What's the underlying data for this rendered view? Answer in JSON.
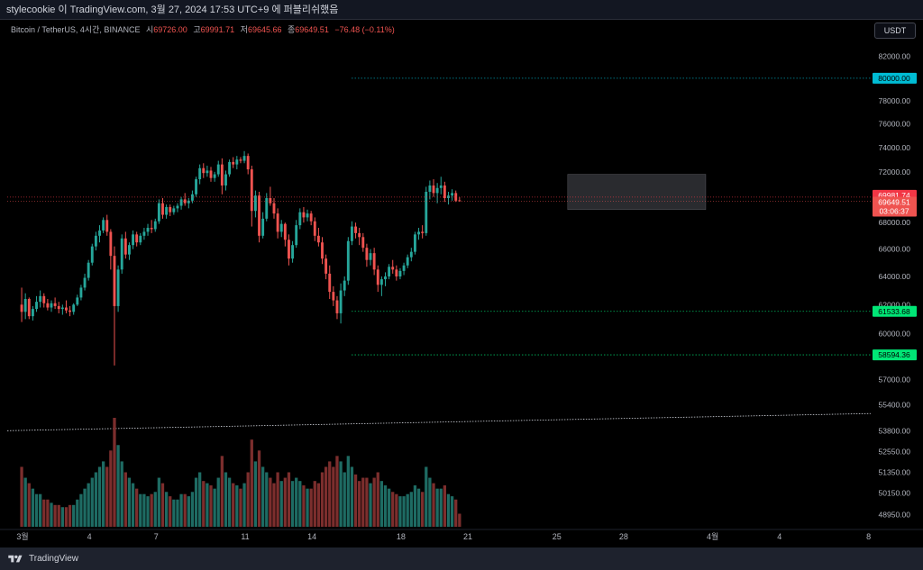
{
  "header": {
    "publish_line": "stylecookie 이 TradingView.com, 3월 27, 2024 17:53 UTC+9 에 퍼블리쉬했음"
  },
  "legend": {
    "symbol": "Bitcoin / TetherUS, 4시간, BINANCE",
    "open_label": "시",
    "open": "69726.00",
    "high_label": "고",
    "high": "69991.71",
    "low_label": "저",
    "low": "69645.66",
    "close_label": "종",
    "close": "69649.51",
    "change": "−76.48 (−0.11%)"
  },
  "currency_button": "USDT",
  "footer": {
    "brand": "TradingView"
  },
  "colors": {
    "up": "#26a69a",
    "down": "#ef5350",
    "vol_up": "#1e6b63",
    "vol_down": "#7c2e2d",
    "price_badge": "#f23645",
    "last_badge": "#ef5350",
    "level_cyan": "#00bcd4",
    "level_green": "#00e676"
  },
  "chart_data": {
    "type": "candlestick",
    "symbol": "BTCUSDT",
    "interval": "4h",
    "x_ticks": [
      "3월",
      "4",
      "7",
      "11",
      "14",
      "18",
      "21",
      "25",
      "28",
      "4월",
      "4",
      "8"
    ],
    "y_ticks": [
      "82000.00",
      "78000.00",
      "76000.00",
      "74000.00",
      "72000.00",
      "68000.00",
      "66000.00",
      "64000.00",
      "62000.00",
      "60000.00",
      "57000.00",
      "55400.00",
      "53800.00",
      "52550.00",
      "51350.00",
      "50150.00",
      "48950.00"
    ],
    "y_scale": "log",
    "last_price": {
      "value": "69649.51",
      "countdown": "03:06:37"
    },
    "high_line": "69981.74",
    "levels": [
      {
        "value": "80000.00",
        "color": "cyan"
      },
      {
        "value": "61533.68",
        "color": "green"
      },
      {
        "value": "58594.36",
        "color": "green"
      }
    ],
    "trend_line": {
      "from_date": "2024-03-01",
      "from_price": 53800,
      "to_date": "2024-04-08",
      "to_price": 54850
    },
    "range_box": {
      "from_date": "2024-03-25",
      "to_date": "2024-03-31",
      "low": 69000,
      "high": 71800
    },
    "start_date": "2024-03-01",
    "candle_hours": 4,
    "candles": [
      [
        62000,
        63200,
        60800,
        61500,
        0.55
      ],
      [
        61500,
        62800,
        61000,
        62400,
        0.45
      ],
      [
        62400,
        62500,
        61000,
        61200,
        0.4
      ],
      [
        61200,
        61900,
        60900,
        61700,
        0.35
      ],
      [
        61700,
        62600,
        61500,
        62200,
        0.3
      ],
      [
        62200,
        63000,
        61800,
        62600,
        0.3
      ],
      [
        62600,
        62800,
        61800,
        62100,
        0.25
      ],
      [
        62100,
        62400,
        61600,
        61800,
        0.25
      ],
      [
        61800,
        62300,
        61500,
        62100,
        0.22
      ],
      [
        62100,
        62500,
        61700,
        61900,
        0.2
      ],
      [
        61900,
        62200,
        61400,
        61700,
        0.2
      ],
      [
        61700,
        62000,
        61300,
        61800,
        0.18
      ],
      [
        61800,
        62300,
        61400,
        61600,
        0.18
      ],
      [
        61600,
        61900,
        61200,
        61500,
        0.2
      ],
      [
        61500,
        62100,
        61300,
        62000,
        0.2
      ],
      [
        62000,
        62700,
        61900,
        62500,
        0.25
      ],
      [
        62500,
        63400,
        62300,
        63200,
        0.3
      ],
      [
        63200,
        64200,
        63000,
        63900,
        0.35
      ],
      [
        63900,
        65200,
        63700,
        65000,
        0.4
      ],
      [
        65000,
        66400,
        64800,
        66200,
        0.45
      ],
      [
        66200,
        67300,
        65900,
        67000,
        0.5
      ],
      [
        67000,
        67800,
        66500,
        67400,
        0.55
      ],
      [
        67400,
        68400,
        67200,
        68200,
        0.6
      ],
      [
        68200,
        68600,
        67000,
        67300,
        0.55
      ],
      [
        67300,
        67500,
        64500,
        65500,
        0.7
      ],
      [
        65500,
        66200,
        57900,
        61900,
        1.0
      ],
      [
        61900,
        64800,
        61500,
        64500,
        0.75
      ],
      [
        64500,
        67100,
        64200,
        66800,
        0.6
      ],
      [
        66800,
        67300,
        65300,
        65600,
        0.5
      ],
      [
        65600,
        66500,
        65200,
        66300,
        0.45
      ],
      [
        66300,
        67400,
        66000,
        67100,
        0.4
      ],
      [
        67100,
        67300,
        66200,
        66500,
        0.35
      ],
      [
        66500,
        67200,
        66300,
        67000,
        0.3
      ],
      [
        67000,
        67600,
        66700,
        67300,
        0.3
      ],
      [
        67300,
        67900,
        67000,
        67600,
        0.28
      ],
      [
        67600,
        68200,
        67200,
        67500,
        0.3
      ],
      [
        67500,
        68300,
        67300,
        68100,
        0.32
      ],
      [
        68100,
        69800,
        67900,
        69500,
        0.45
      ],
      [
        69500,
        69900,
        68300,
        68600,
        0.4
      ],
      [
        68600,
        69400,
        68300,
        69200,
        0.32
      ],
      [
        69200,
        69400,
        68500,
        68800,
        0.28
      ],
      [
        68800,
        69300,
        68600,
        69100,
        0.25
      ],
      [
        69100,
        69500,
        68800,
        69300,
        0.25
      ],
      [
        69300,
        70000,
        69000,
        69800,
        0.3
      ],
      [
        69800,
        70300,
        69300,
        69500,
        0.3
      ],
      [
        69500,
        69900,
        69100,
        69700,
        0.28
      ],
      [
        69700,
        70500,
        69500,
        70200,
        0.32
      ],
      [
        70200,
        71600,
        70000,
        71400,
        0.45
      ],
      [
        71400,
        72600,
        71000,
        72300,
        0.5
      ],
      [
        72300,
        72700,
        71500,
        71900,
        0.42
      ],
      [
        71900,
        72500,
        71600,
        72100,
        0.4
      ],
      [
        72100,
        72400,
        71200,
        71500,
        0.38
      ],
      [
        71500,
        72000,
        71200,
        71800,
        0.35
      ],
      [
        71800,
        72900,
        71600,
        72600,
        0.45
      ],
      [
        72600,
        73100,
        70200,
        70900,
        0.65
      ],
      [
        70900,
        72100,
        70500,
        71800,
        0.5
      ],
      [
        71800,
        73000,
        71600,
        72800,
        0.45
      ],
      [
        72800,
        73200,
        72300,
        72600,
        0.4
      ],
      [
        72600,
        73300,
        72200,
        73000,
        0.38
      ],
      [
        73000,
        73200,
        72700,
        72900,
        0.35
      ],
      [
        72900,
        73700,
        72700,
        73300,
        0.4
      ],
      [
        73300,
        73500,
        71800,
        72200,
        0.5
      ],
      [
        72200,
        72500,
        67700,
        68900,
        0.8
      ],
      [
        68900,
        70500,
        68400,
        70100,
        0.6
      ],
      [
        70100,
        70400,
        66500,
        67000,
        0.7
      ],
      [
        67000,
        68800,
        66800,
        68300,
        0.55
      ],
      [
        68300,
        70300,
        68100,
        69900,
        0.5
      ],
      [
        69900,
        70800,
        69300,
        69500,
        0.45
      ],
      [
        69500,
        69900,
        68300,
        68700,
        0.4
      ],
      [
        68700,
        69100,
        66800,
        67300,
        0.5
      ],
      [
        67300,
        68200,
        66900,
        67900,
        0.42
      ],
      [
        67900,
        68000,
        66200,
        66700,
        0.45
      ],
      [
        66700,
        67100,
        64800,
        65300,
        0.5
      ],
      [
        65300,
        66600,
        65000,
        66300,
        0.42
      ],
      [
        66300,
        68200,
        66100,
        67800,
        0.45
      ],
      [
        67800,
        69100,
        67500,
        68800,
        0.42
      ],
      [
        68800,
        69200,
        68000,
        68400,
        0.38
      ],
      [
        68400,
        69000,
        68100,
        68700,
        0.35
      ],
      [
        68700,
        68900,
        67800,
        68100,
        0.35
      ],
      [
        68100,
        68400,
        66600,
        67000,
        0.42
      ],
      [
        67000,
        67600,
        66200,
        66500,
        0.4
      ],
      [
        66500,
        66900,
        64900,
        65300,
        0.5
      ],
      [
        65300,
        65600,
        63800,
        64200,
        0.55
      ],
      [
        64200,
        64800,
        62400,
        62900,
        0.6
      ],
      [
        62900,
        63300,
        61900,
        62300,
        0.55
      ],
      [
        62300,
        62600,
        61000,
        61400,
        0.65
      ],
      [
        61400,
        63500,
        60700,
        63000,
        0.6
      ],
      [
        63000,
        64000,
        62600,
        63700,
        0.5
      ],
      [
        63700,
        66900,
        63400,
        66600,
        0.65
      ],
      [
        66600,
        68100,
        66300,
        67700,
        0.55
      ],
      [
        67700,
        68000,
        66800,
        67200,
        0.48
      ],
      [
        67200,
        67600,
        66300,
        66900,
        0.42
      ],
      [
        66900,
        67200,
        65800,
        66100,
        0.45
      ],
      [
        66100,
        66400,
        64700,
        65200,
        0.45
      ],
      [
        65200,
        66000,
        64800,
        65700,
        0.4
      ],
      [
        65700,
        66100,
        64100,
        64500,
        0.45
      ],
      [
        64500,
        64800,
        62900,
        63400,
        0.5
      ],
      [
        63400,
        64000,
        62600,
        63800,
        0.42
      ],
      [
        63800,
        64300,
        63300,
        64000,
        0.38
      ],
      [
        64000,
        64900,
        63800,
        64700,
        0.35
      ],
      [
        64700,
        65200,
        64200,
        64500,
        0.32
      ],
      [
        64500,
        64800,
        63700,
        64000,
        0.3
      ],
      [
        64000,
        64600,
        63800,
        64400,
        0.28
      ],
      [
        64400,
        65000,
        64100,
        64800,
        0.28
      ],
      [
        64800,
        65600,
        64600,
        65400,
        0.3
      ],
      [
        65400,
        66100,
        65100,
        65800,
        0.32
      ],
      [
        65800,
        67300,
        65600,
        67100,
        0.38
      ],
      [
        67100,
        67600,
        66700,
        67300,
        0.35
      ],
      [
        67300,
        67800,
        66800,
        67200,
        0.32
      ],
      [
        67200,
        70800,
        67000,
        70400,
        0.55
      ],
      [
        70400,
        71300,
        69800,
        70900,
        0.45
      ],
      [
        70900,
        71400,
        70000,
        70300,
        0.4
      ],
      [
        70300,
        71100,
        69500,
        70700,
        0.35
      ],
      [
        70700,
        71600,
        70200,
        70900,
        0.35
      ],
      [
        70900,
        71200,
        69600,
        69900,
        0.38
      ],
      [
        69900,
        70400,
        69400,
        70100,
        0.3
      ],
      [
        70100,
        70600,
        69700,
        70300,
        0.28
      ],
      [
        70300,
        70500,
        69600,
        69700,
        0.25
      ],
      [
        69726,
        69992,
        69646,
        69650,
        0.12
      ]
    ]
  }
}
